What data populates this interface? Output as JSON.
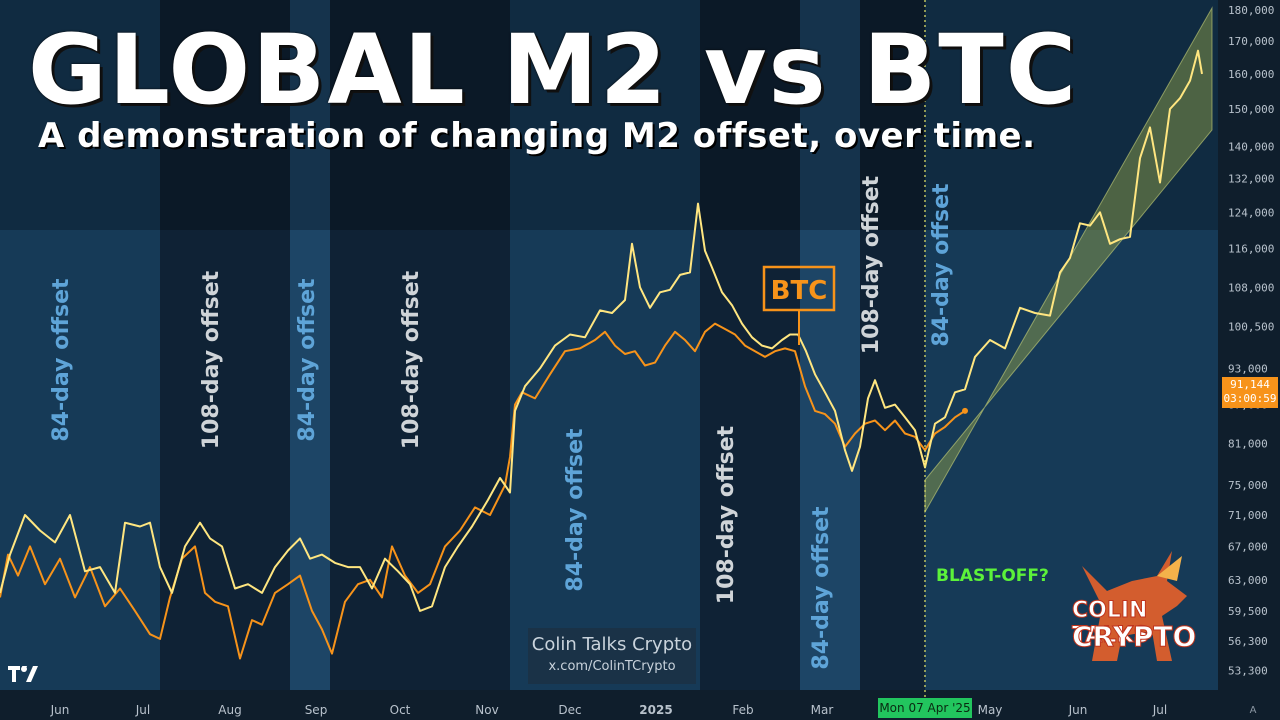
{
  "header": {
    "title": "GLOBAL M2 vs BTC",
    "subtitle": "A demonstration of changing M2 offset, over time."
  },
  "colors": {
    "btc": "#f7931a",
    "m2": "#ffe680",
    "offset_84": "#5ea4d8",
    "offset_108": "#cfd4d8",
    "blastoff": "#5cf23a",
    "channel": "#9aa84a"
  },
  "chart_data": {
    "type": "line",
    "y_scale": "log",
    "ylim": [
      52000,
      182000
    ],
    "y_ticks": [
      "180,000",
      "170,000",
      "160,000",
      "150,000",
      "140,000",
      "132,000",
      "124,000",
      "116,000",
      "108,000",
      "100,500",
      "93,000",
      "87,000",
      "81,000",
      "75,000",
      "71,000",
      "67,000",
      "63,000",
      "59,500",
      "56,300",
      "53,300"
    ],
    "x_ticks": [
      "Jun",
      "Jul",
      "Aug",
      "Sep",
      "Oct",
      "Nov",
      "Dec",
      "2025",
      "Feb",
      "Mar",
      "Mon 07 Apr '25",
      "May",
      "Jun",
      "Jul"
    ],
    "offset_labels": [
      {
        "text": "84-day offset",
        "kind": "84"
      },
      {
        "text": "108-day offset",
        "kind": "108"
      },
      {
        "text": "84-day offset",
        "kind": "84"
      },
      {
        "text": "108-day offset",
        "kind": "108"
      },
      {
        "text": "84-day offset",
        "kind": "84"
      },
      {
        "text": "108-day offset",
        "kind": "108"
      },
      {
        "text": "84-day offset",
        "kind": "84"
      },
      {
        "text": "108-day offset",
        "kind": "108"
      },
      {
        "text": "84-day offset",
        "kind": "84"
      }
    ],
    "btc_label": "BTC",
    "blastoff_label": "BLAST-OFF?",
    "current_price": "91,144",
    "countdown": "03:00:59",
    "series": [
      {
        "name": "BTC",
        "points": [
          [
            0,
            61000
          ],
          [
            8,
            66000
          ],
          [
            18,
            63500
          ],
          [
            30,
            67000
          ],
          [
            45,
            62500
          ],
          [
            60,
            65500
          ],
          [
            75,
            61000
          ],
          [
            90,
            64500
          ],
          [
            105,
            60000
          ],
          [
            120,
            62000
          ],
          [
            135,
            59500
          ],
          [
            150,
            57000
          ],
          [
            160,
            56500
          ],
          [
            170,
            61000
          ],
          [
            182,
            65500
          ],
          [
            195,
            67000
          ],
          [
            205,
            61500
          ],
          [
            215,
            60500
          ],
          [
            228,
            60000
          ],
          [
            240,
            54500
          ],
          [
            252,
            58500
          ],
          [
            262,
            58000
          ],
          [
            275,
            61500
          ],
          [
            288,
            62500
          ],
          [
            300,
            63500
          ],
          [
            312,
            59500
          ],
          [
            322,
            57500
          ],
          [
            332,
            55000
          ],
          [
            345,
            60500
          ],
          [
            358,
            62500
          ],
          [
            370,
            63000
          ],
          [
            382,
            61000
          ],
          [
            392,
            67000
          ],
          [
            405,
            63500
          ],
          [
            418,
            61500
          ],
          [
            430,
            62500
          ],
          [
            445,
            67000
          ],
          [
            460,
            69000
          ],
          [
            475,
            72000
          ],
          [
            490,
            71000
          ],
          [
            505,
            75000
          ],
          [
            510,
            79000
          ],
          [
            515,
            87000
          ],
          [
            522,
            89000
          ],
          [
            535,
            88000
          ],
          [
            550,
            92000
          ],
          [
            565,
            96000
          ],
          [
            580,
            96500
          ],
          [
            595,
            98000
          ],
          [
            605,
            99500
          ],
          [
            615,
            97000
          ],
          [
            625,
            95500
          ],
          [
            635,
            96000
          ],
          [
            645,
            93500
          ],
          [
            655,
            94000
          ],
          [
            665,
            97000
          ],
          [
            675,
            99500
          ],
          [
            685,
            98000
          ],
          [
            695,
            96000
          ],
          [
            705,
            99500
          ],
          [
            715,
            101000
          ],
          [
            725,
            100000
          ],
          [
            735,
            99000
          ],
          [
            745,
            97000
          ],
          [
            755,
            96000
          ],
          [
            765,
            95000
          ],
          [
            775,
            96000
          ],
          [
            785,
            96500
          ],
          [
            795,
            96000
          ],
          [
            805,
            90000
          ],
          [
            815,
            86000
          ],
          [
            825,
            85500
          ],
          [
            835,
            84000
          ],
          [
            845,
            80500
          ],
          [
            855,
            82500
          ],
          [
            865,
            84000
          ],
          [
            875,
            84500
          ],
          [
            885,
            83000
          ],
          [
            895,
            84500
          ],
          [
            905,
            82500
          ],
          [
            915,
            82000
          ],
          [
            925,
            80000
          ],
          [
            935,
            82500
          ],
          [
            945,
            83500
          ],
          [
            955,
            85000
          ],
          [
            965,
            86000
          ]
        ]
      },
      {
        "name": "",
        "points": [
          [
            0,
            61500
          ],
          [
            10,
            66000
          ],
          [
            25,
            71000
          ],
          [
            40,
            69000
          ],
          [
            55,
            67500
          ],
          [
            70,
            71000
          ],
          [
            85,
            64000
          ],
          [
            100,
            64500
          ],
          [
            115,
            61500
          ],
          [
            125,
            70000
          ],
          [
            140,
            69500
          ],
          [
            150,
            70000
          ],
          [
            160,
            64500
          ],
          [
            172,
            61500
          ],
          [
            185,
            67000
          ],
          [
            200,
            70000
          ],
          [
            210,
            68000
          ],
          [
            222,
            67000
          ],
          [
            235,
            62000
          ],
          [
            248,
            62500
          ],
          [
            262,
            61500
          ],
          [
            275,
            64500
          ],
          [
            288,
            66500
          ],
          [
            300,
            68000
          ],
          [
            310,
            65500
          ],
          [
            322,
            66000
          ],
          [
            335,
            65000
          ],
          [
            348,
            64500
          ],
          [
            360,
            64500
          ],
          [
            372,
            62000
          ],
          [
            385,
            65500
          ],
          [
            398,
            64000
          ],
          [
            410,
            62500
          ],
          [
            420,
            59500
          ],
          [
            432,
            60000
          ],
          [
            445,
            64500
          ],
          [
            458,
            67000
          ],
          [
            472,
            69500
          ],
          [
            488,
            73000
          ],
          [
            500,
            76000
          ],
          [
            510,
            74000
          ],
          [
            515,
            86000
          ],
          [
            525,
            90000
          ],
          [
            540,
            93000
          ],
          [
            555,
            97000
          ],
          [
            570,
            99000
          ],
          [
            585,
            98500
          ],
          [
            600,
            103500
          ],
          [
            612,
            103000
          ],
          [
            625,
            105500
          ],
          [
            632,
            117000
          ],
          [
            640,
            108000
          ],
          [
            650,
            104000
          ],
          [
            660,
            107000
          ],
          [
            670,
            107500
          ],
          [
            680,
            110500
          ],
          [
            690,
            111000
          ],
          [
            698,
            126000
          ],
          [
            705,
            115500
          ],
          [
            712,
            112000
          ],
          [
            722,
            107000
          ],
          [
            732,
            104500
          ],
          [
            742,
            101000
          ],
          [
            752,
            98500
          ],
          [
            762,
            97000
          ],
          [
            772,
            96500
          ],
          [
            782,
            98000
          ],
          [
            790,
            99000
          ],
          [
            798,
            99000
          ],
          [
            806,
            96000
          ],
          [
            815,
            92000
          ],
          [
            825,
            89000
          ],
          [
            835,
            86000
          ],
          [
            845,
            80000
          ],
          [
            852,
            77000
          ],
          [
            860,
            80500
          ],
          [
            868,
            88000
          ],
          [
            875,
            91000
          ],
          [
            885,
            86500
          ],
          [
            895,
            87000
          ],
          [
            905,
            85000
          ],
          [
            915,
            83000
          ],
          [
            925,
            77500
          ],
          [
            935,
            84000
          ],
          [
            945,
            85000
          ],
          [
            955,
            89000
          ],
          [
            965,
            89500
          ],
          [
            975,
            95000
          ],
          [
            990,
            98000
          ],
          [
            1005,
            96500
          ],
          [
            1020,
            104000
          ],
          [
            1035,
            103000
          ],
          [
            1050,
            102500
          ],
          [
            1060,
            111000
          ],
          [
            1070,
            114000
          ],
          [
            1080,
            121500
          ],
          [
            1090,
            121000
          ],
          [
            1100,
            124000
          ],
          [
            1110,
            117000
          ],
          [
            1120,
            118000
          ],
          [
            1130,
            118500
          ],
          [
            1140,
            137000
          ],
          [
            1150,
            145000
          ],
          [
            1160,
            131000
          ],
          [
            1170,
            150000
          ],
          [
            1180,
            153000
          ],
          [
            1190,
            158000
          ],
          [
            1198,
            167000
          ],
          [
            1202,
            160000
          ]
        ]
      }
    ]
  },
  "watermark": {
    "line1": "Colin Talks Crypto",
    "line2": "x.com/ColinTCrypto"
  },
  "brand": {
    "line1": "COLIN TALKS",
    "line2": "CRYPTO"
  },
  "corner_letter": "A"
}
